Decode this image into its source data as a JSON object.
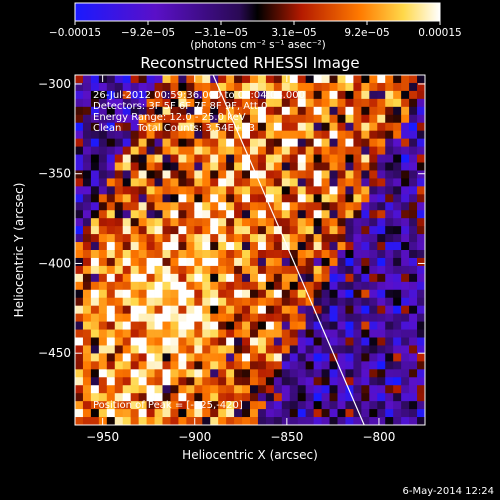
{
  "chart_data": {
    "type": "heatmap",
    "title": "Reconstructed RHESSI Image",
    "xlabel": "Heliocentric X (arcsec)",
    "ylabel": "Heliocentric Y (arcsec)",
    "xlim": [
      -965,
      -775
    ],
    "ylim": [
      -490,
      -295
    ],
    "x_ticks": [
      {
        "value": -950,
        "label": "−950"
      },
      {
        "value": -900,
        "label": "−900"
      },
      {
        "value": -850,
        "label": "−850"
      },
      {
        "value": -800,
        "label": "−800"
      }
    ],
    "y_ticks": [
      {
        "value": -300,
        "label": "−300"
      },
      {
        "value": -350,
        "label": "−350"
      },
      {
        "value": -400,
        "label": "−400"
      },
      {
        "value": -450,
        "label": "−450"
      }
    ],
    "colorbar": {
      "range": [
        -0.00015,
        0.00015
      ],
      "tick_labels": [
        "−0.00015",
        "−9.2e−05",
        "−3.1e−05",
        "3.1e−05",
        "9.2e−05",
        "0.00015"
      ],
      "unit_label": "(photons cm⁻² s⁻¹ asec⁻²)",
      "colors": [
        "#1a1aff",
        "#5a10c8",
        "#2a0a55",
        "#000000",
        "#b41a00",
        "#ff7a00",
        "#ffd84a",
        "#ffffff"
      ]
    },
    "annotations": [
      "26-Jul-2012 00:59:36.000 to 01:04:04.000",
      "Detectors: 3F 5F 6F 7F 8F 9F, Att 0",
      "Energy Range: 12.0 - 25.0 keV",
      "Clean     Total Counts: 3.54E+03"
    ],
    "peak_label": "Position of Peak = [-925,-420]",
    "peak": [
      -925,
      -420
    ],
    "limb_line": [
      [
        -890,
        -295
      ],
      [
        -808,
        -490
      ]
    ],
    "timestamp": "6-May-2014 12:24"
  }
}
